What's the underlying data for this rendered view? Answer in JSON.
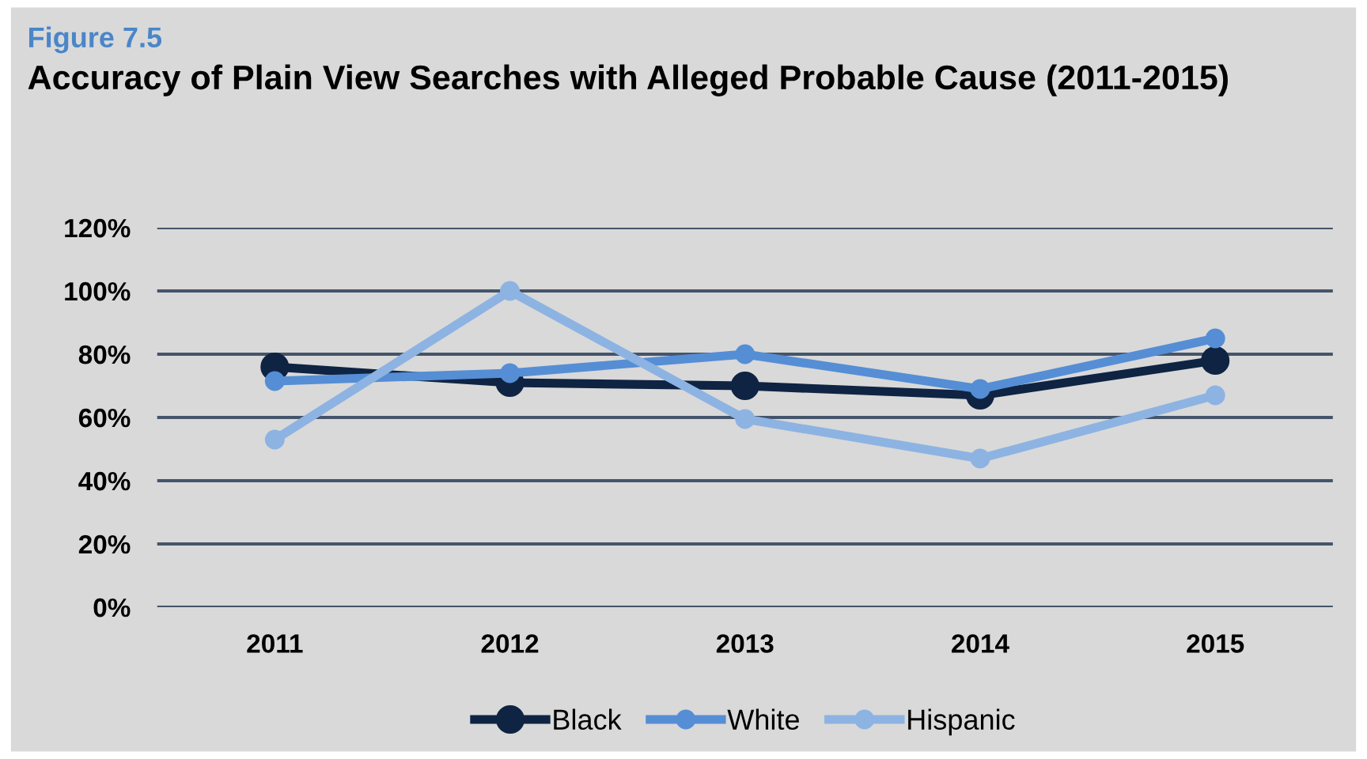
{
  "chart_data": {
    "type": "line",
    "subtitle": "Figure 7.5",
    "title": "Accuracy of Plain View Searches with Alleged Probable Cause (2011-2015)",
    "categories": [
      "2011",
      "2012",
      "2013",
      "2014",
      "2015"
    ],
    "series": [
      {
        "name": "Black",
        "color": "#0f2443",
        "values": [
          76,
          71,
          70,
          67,
          78
        ]
      },
      {
        "name": "White",
        "color": "#558ed5",
        "values": [
          71.5,
          74,
          80,
          69,
          85
        ]
      },
      {
        "name": "Hispanic",
        "color": "#8db3e2",
        "values": [
          53,
          100,
          59.5,
          47,
          67
        ]
      }
    ],
    "ylim": [
      0,
      120
    ],
    "yticks": [
      {
        "value": 0,
        "label": "0%"
      },
      {
        "value": 20,
        "label": "20%"
      },
      {
        "value": 40,
        "label": "40%"
      },
      {
        "value": 60,
        "label": "60%"
      },
      {
        "value": 80,
        "label": "80%"
      },
      {
        "value": 100,
        "label": "100%"
      },
      {
        "value": 120,
        "label": "120%"
      }
    ],
    "grid": "y",
    "legend": "bottom",
    "marker": "circle",
    "line_style": "solid"
  }
}
